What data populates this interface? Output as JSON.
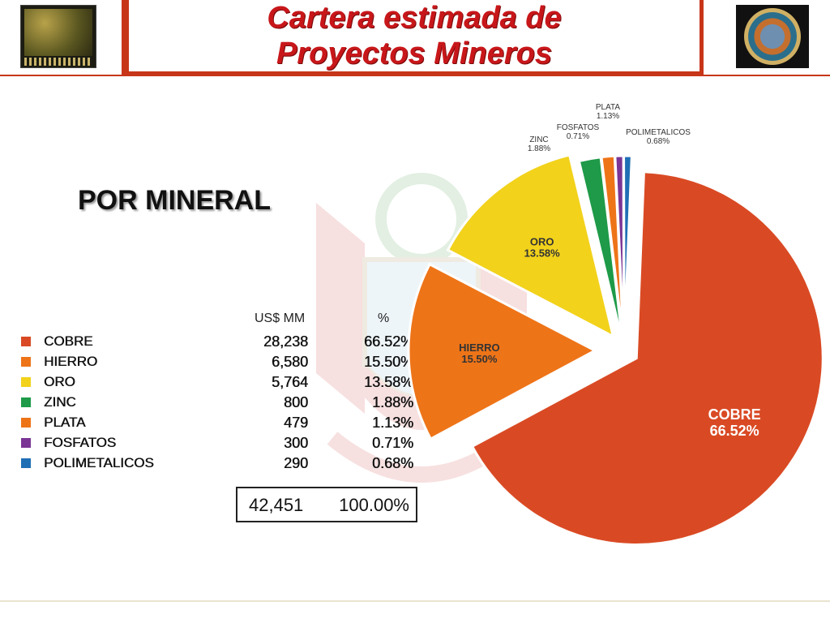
{
  "header": {
    "title_line1": "Cartera estimada de",
    "title_line2": "Proyectos Mineros"
  },
  "subtitle": "POR MINERAL",
  "table": {
    "col_usd": "US$ MM",
    "col_pct": "%",
    "rows": [
      {
        "name": "COBRE",
        "value": "28,238",
        "pct": "66.52%",
        "color": "#d94a24"
      },
      {
        "name": "HIERRO",
        "value": "6,580",
        "pct": "15.50%",
        "color": "#ee7418"
      },
      {
        "name": "ORO",
        "value": "5,764",
        "pct": "13.58%",
        "color": "#f2d21b"
      },
      {
        "name": "ZINC",
        "value": "800",
        "pct": "1.88%",
        "color": "#1e9a48"
      },
      {
        "name": "PLATA",
        "value": "479",
        "pct": "1.13%",
        "color": "#ee7418"
      },
      {
        "name": "FOSFATOS",
        "value": "300",
        "pct": "0.71%",
        "color": "#7b3595"
      },
      {
        "name": "POLIMETALICOS",
        "value": "290",
        "pct": "0.68%",
        "color": "#1f6fb5"
      }
    ],
    "total_value": "42,451",
    "total_pct": "100.00%"
  },
  "chart_data": {
    "type": "pie",
    "title": "",
    "categories": [
      "COBRE",
      "HIERRO",
      "ORO",
      "ZINC",
      "PLATA",
      "FOSFATOS",
      "POLIMETALICOS"
    ],
    "values": [
      66.52,
      15.5,
      13.58,
      1.88,
      1.13,
      0.71,
      0.68
    ],
    "labels": [
      "66.52%",
      "15.50%",
      "13.58%",
      "1.88%",
      "1.13%",
      "0.71%",
      "0.68%"
    ],
    "colors": [
      "#d94a24",
      "#ee7418",
      "#f2d21b",
      "#1e9a48",
      "#ee7418",
      "#7b3595",
      "#1f6fb5"
    ],
    "exploded": true,
    "legend": "left"
  }
}
